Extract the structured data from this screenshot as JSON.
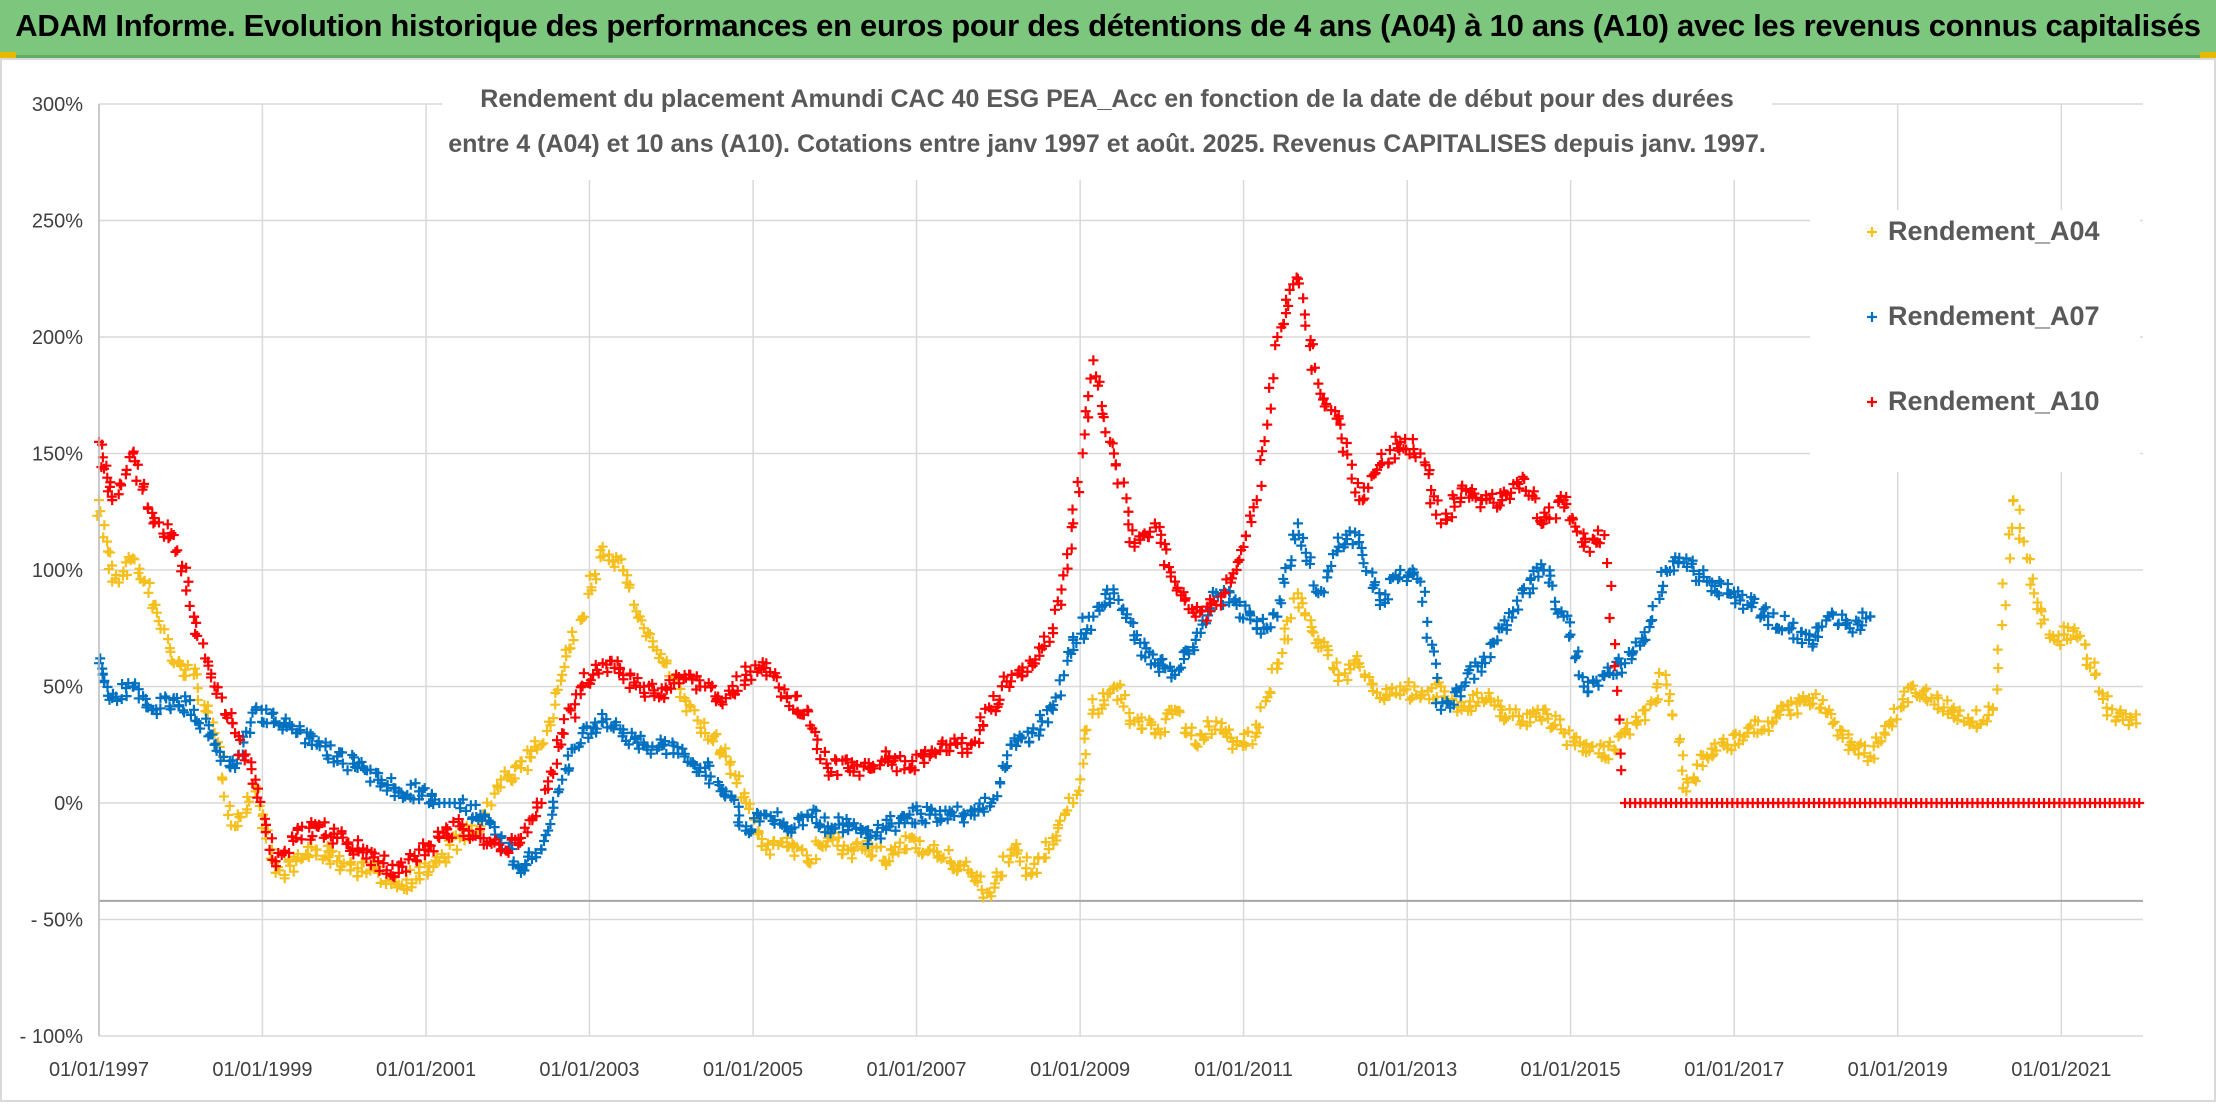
{
  "banner": {
    "title": "ADAM Informe. Evolution historique des performances en euros pour des détentions de 4 ans (A04) à 10 ans (A10) avec les revenus connus capitalisés",
    "background": "#7dc67d"
  },
  "chart_data": {
    "type": "scatter",
    "title_line1": "Rendement du placement Amundi CAC 40 ESG PEA_Acc en fonction de la date de début pour des durées",
    "title_line2": "entre 4 (A04) et 10 ans (A10). Cotations entre janv 1997 et août. 2025. Revenus CAPITALISES depuis janv. 1997.",
    "xlabel": "",
    "ylabel": "",
    "x_tick_labels": [
      "01/01/1997",
      "01/01/1999",
      "01/01/2001",
      "01/01/2003",
      "01/01/2005",
      "01/01/2007",
      "01/01/2009",
      "01/01/2011",
      "01/01/2013",
      "01/01/2015",
      "01/01/2017",
      "01/01/2019",
      "01/01/2021"
    ],
    "y_tick_labels": [
      "300%",
      "250%",
      "200%",
      "150%",
      "100%",
      "50%",
      "0%",
      "- 50%",
      "- 100%"
    ],
    "ylim": [
      -100,
      300
    ],
    "xlim": [
      "1997-01-01",
      "2022-01-01"
    ],
    "grid": true,
    "legend_position": "top-right",
    "marker": "+",
    "series": [
      {
        "name": "Rendement_A04",
        "color": "#f5c01e",
        "points": [
          [
            "1997-01-01",
            130
          ],
          [
            "1997-03-01",
            95
          ],
          [
            "1997-06-01",
            105
          ],
          [
            "1997-09-01",
            85
          ],
          [
            "1997-12-01",
            60
          ],
          [
            "1998-03-01",
            55
          ],
          [
            "1998-06-01",
            30
          ],
          [
            "1998-09-01",
            -10
          ],
          [
            "1998-12-01",
            5
          ],
          [
            "1999-03-01",
            -30
          ],
          [
            "1999-06-01",
            -25
          ],
          [
            "1999-09-01",
            -20
          ],
          [
            "1999-12-01",
            -25
          ],
          [
            "2000-03-01",
            -28
          ],
          [
            "2000-06-01",
            -30
          ],
          [
            "2000-09-01",
            -35
          ],
          [
            "2000-12-01",
            -30
          ],
          [
            "2001-03-01",
            -25
          ],
          [
            "2001-06-01",
            -15
          ],
          [
            "2001-09-01",
            -10
          ],
          [
            "2001-12-01",
            10
          ],
          [
            "2002-03-01",
            15
          ],
          [
            "2002-06-01",
            25
          ],
          [
            "2002-09-01",
            55
          ],
          [
            "2002-12-01",
            80
          ],
          [
            "2003-03-01",
            110
          ],
          [
            "2003-06-01",
            100
          ],
          [
            "2003-09-01",
            75
          ],
          [
            "2003-12-01",
            60
          ],
          [
            "2004-03-01",
            45
          ],
          [
            "2004-06-01",
            30
          ],
          [
            "2004-09-01",
            20
          ],
          [
            "2004-12-01",
            0
          ],
          [
            "2005-03-01",
            -20
          ],
          [
            "2005-06-01",
            -15
          ],
          [
            "2005-09-01",
            -25
          ],
          [
            "2005-12-01",
            -15
          ],
          [
            "2006-03-01",
            -20
          ],
          [
            "2006-06-01",
            -20
          ],
          [
            "2006-09-01",
            -25
          ],
          [
            "2006-12-01",
            -15
          ],
          [
            "2007-03-01",
            -20
          ],
          [
            "2007-06-01",
            -25
          ],
          [
            "2007-09-01",
            -30
          ],
          [
            "2007-12-01",
            -40
          ],
          [
            "2008-03-01",
            -20
          ],
          [
            "2008-06-01",
            -30
          ],
          [
            "2008-09-01",
            -15
          ],
          [
            "2008-12-01",
            0
          ],
          [
            "2009-03-01",
            40
          ],
          [
            "2009-06-01",
            50
          ],
          [
            "2009-09-01",
            35
          ],
          [
            "2009-12-01",
            30
          ],
          [
            "2010-03-01",
            40
          ],
          [
            "2010-06-01",
            25
          ],
          [
            "2010-09-01",
            35
          ],
          [
            "2010-12-01",
            25
          ],
          [
            "2011-03-01",
            30
          ],
          [
            "2011-06-01",
            60
          ],
          [
            "2011-09-01",
            90
          ],
          [
            "2011-12-01",
            70
          ],
          [
            "2012-03-01",
            55
          ],
          [
            "2012-06-01",
            60
          ],
          [
            "2012-09-01",
            45
          ],
          [
            "2012-12-01",
            50
          ],
          [
            "2013-03-01",
            45
          ],
          [
            "2013-06-01",
            50
          ],
          [
            "2013-09-01",
            40
          ],
          [
            "2013-12-01",
            45
          ],
          [
            "2014-03-01",
            40
          ],
          [
            "2014-06-01",
            35
          ],
          [
            "2014-09-01",
            40
          ],
          [
            "2014-12-01",
            30
          ],
          [
            "2015-03-01",
            25
          ],
          [
            "2015-06-01",
            20
          ],
          [
            "2015-09-01",
            30
          ],
          [
            "2015-12-01",
            40
          ],
          [
            "2016-03-01",
            55
          ],
          [
            "2016-06-01",
            5
          ],
          [
            "2016-09-01",
            20
          ],
          [
            "2016-12-01",
            25
          ],
          [
            "2017-03-01",
            30
          ],
          [
            "2017-06-01",
            35
          ],
          [
            "2017-09-01",
            40
          ],
          [
            "2017-12-01",
            45
          ],
          [
            "2018-03-01",
            40
          ],
          [
            "2018-06-01",
            25
          ],
          [
            "2018-09-01",
            20
          ],
          [
            "2018-12-01",
            35
          ],
          [
            "2019-03-01",
            50
          ],
          [
            "2019-06-01",
            45
          ],
          [
            "2019-09-01",
            40
          ],
          [
            "2019-12-01",
            35
          ],
          [
            "2020-03-01",
            40
          ],
          [
            "2020-06-01",
            130
          ],
          [
            "2020-09-01",
            90
          ],
          [
            "2020-12-01",
            70
          ],
          [
            "2021-03-01",
            75
          ],
          [
            "2021-06-01",
            55
          ],
          [
            "2021-09-01",
            35
          ],
          [
            "2021-12-01",
            38
          ]
        ]
      },
      {
        "name": "Rendement_A07",
        "color": "#0070c0",
        "points": [
          [
            "1997-01-01",
            60
          ],
          [
            "1997-03-01",
            45
          ],
          [
            "1997-06-01",
            50
          ],
          [
            "1997-09-01",
            40
          ],
          [
            "1997-12-01",
            45
          ],
          [
            "1998-03-01",
            40
          ],
          [
            "1998-06-01",
            25
          ],
          [
            "1998-09-01",
            15
          ],
          [
            "1998-12-01",
            40
          ],
          [
            "1999-03-01",
            35
          ],
          [
            "1999-06-01",
            30
          ],
          [
            "1999-09-01",
            25
          ],
          [
            "1999-12-01",
            20
          ],
          [
            "2000-03-01",
            15
          ],
          [
            "2000-06-01",
            10
          ],
          [
            "2000-09-01",
            5
          ],
          [
            "2000-12-01",
            5
          ],
          [
            "2001-03-01",
            0
          ],
          [
            "2001-06-01",
            0
          ],
          [
            "2001-09-01",
            -5
          ],
          [
            "2001-12-01",
            -15
          ],
          [
            "2002-03-01",
            -30
          ],
          [
            "2002-06-01",
            -20
          ],
          [
            "2002-09-01",
            10
          ],
          [
            "2002-12-01",
            30
          ],
          [
            "2003-03-01",
            35
          ],
          [
            "2003-06-01",
            30
          ],
          [
            "2003-09-01",
            25
          ],
          [
            "2003-12-01",
            25
          ],
          [
            "2004-03-01",
            20
          ],
          [
            "2004-06-01",
            15
          ],
          [
            "2004-09-01",
            5
          ],
          [
            "2004-12-01",
            -10
          ],
          [
            "2005-03-01",
            -5
          ],
          [
            "2005-06-01",
            -10
          ],
          [
            "2005-09-01",
            -5
          ],
          [
            "2005-12-01",
            -10
          ],
          [
            "2006-03-01",
            -10
          ],
          [
            "2006-06-01",
            -15
          ],
          [
            "2006-09-01",
            -10
          ],
          [
            "2006-12-01",
            -5
          ],
          [
            "2007-03-01",
            -5
          ],
          [
            "2007-06-01",
            -5
          ],
          [
            "2007-09-01",
            -5
          ],
          [
            "2007-12-01",
            0
          ],
          [
            "2008-03-01",
            25
          ],
          [
            "2008-06-01",
            30
          ],
          [
            "2008-09-01",
            40
          ],
          [
            "2008-12-01",
            70
          ],
          [
            "2009-03-01",
            80
          ],
          [
            "2009-06-01",
            90
          ],
          [
            "2009-09-01",
            70
          ],
          [
            "2009-12-01",
            60
          ],
          [
            "2010-03-01",
            55
          ],
          [
            "2010-06-01",
            70
          ],
          [
            "2010-09-01",
            90
          ],
          [
            "2010-12-01",
            85
          ],
          [
            "2011-03-01",
            75
          ],
          [
            "2011-06-01",
            80
          ],
          [
            "2011-09-01",
            120
          ],
          [
            "2011-12-01",
            90
          ],
          [
            "2012-03-01",
            110
          ],
          [
            "2012-06-01",
            115
          ],
          [
            "2012-09-01",
            85
          ],
          [
            "2012-12-01",
            100
          ],
          [
            "2013-03-01",
            95
          ],
          [
            "2013-06-01",
            40
          ],
          [
            "2013-09-01",
            50
          ],
          [
            "2013-12-01",
            60
          ],
          [
            "2014-03-01",
            75
          ],
          [
            "2014-06-01",
            90
          ],
          [
            "2014-09-01",
            100
          ],
          [
            "2014-12-01",
            80
          ],
          [
            "2015-03-01",
            50
          ],
          [
            "2015-06-01",
            55
          ],
          [
            "2015-09-01",
            60
          ],
          [
            "2015-12-01",
            70
          ],
          [
            "2016-03-01",
            100
          ],
          [
            "2016-06-01",
            105
          ],
          [
            "2016-09-01",
            95
          ],
          [
            "2016-12-01",
            90
          ],
          [
            "2017-03-01",
            85
          ],
          [
            "2017-06-01",
            80
          ],
          [
            "2017-09-01",
            75
          ],
          [
            "2017-12-01",
            70
          ],
          [
            "2018-03-01",
            80
          ],
          [
            "2018-06-01",
            75
          ],
          [
            "2018-09-01",
            80
          ]
        ]
      },
      {
        "name": "Rendement_A10",
        "color": "#ff0000",
        "points": [
          [
            "1997-01-01",
            155
          ],
          [
            "1997-03-01",
            130
          ],
          [
            "1997-06-01",
            150
          ],
          [
            "1997-09-01",
            120
          ],
          [
            "1997-12-01",
            115
          ],
          [
            "1998-03-01",
            80
          ],
          [
            "1998-06-01",
            50
          ],
          [
            "1998-09-01",
            30
          ],
          [
            "1998-12-01",
            10
          ],
          [
            "1999-03-01",
            -25
          ],
          [
            "1999-06-01",
            -15
          ],
          [
            "1999-09-01",
            -10
          ],
          [
            "1999-12-01",
            -15
          ],
          [
            "2000-03-01",
            -20
          ],
          [
            "2000-06-01",
            -25
          ],
          [
            "2000-09-01",
            -30
          ],
          [
            "2000-12-01",
            -20
          ],
          [
            "2001-03-01",
            -15
          ],
          [
            "2001-06-01",
            -10
          ],
          [
            "2001-09-01",
            -15
          ],
          [
            "2001-12-01",
            -20
          ],
          [
            "2002-03-01",
            -15
          ],
          [
            "2002-06-01",
            0
          ],
          [
            "2002-09-01",
            30
          ],
          [
            "2002-12-01",
            50
          ],
          [
            "2003-03-01",
            60
          ],
          [
            "2003-06-01",
            55
          ],
          [
            "2003-09-01",
            50
          ],
          [
            "2003-12-01",
            45
          ],
          [
            "2004-03-01",
            55
          ],
          [
            "2004-06-01",
            50
          ],
          [
            "2004-09-01",
            45
          ],
          [
            "2004-12-01",
            55
          ],
          [
            "2005-03-01",
            60
          ],
          [
            "2005-06-01",
            45
          ],
          [
            "2005-09-01",
            40
          ],
          [
            "2005-12-01",
            15
          ],
          [
            "2006-03-01",
            15
          ],
          [
            "2006-06-01",
            15
          ],
          [
            "2006-09-01",
            20
          ],
          [
            "2006-12-01",
            15
          ],
          [
            "2007-03-01",
            20
          ],
          [
            "2007-06-01",
            25
          ],
          [
            "2007-09-01",
            25
          ],
          [
            "2007-12-01",
            40
          ],
          [
            "2008-03-01",
            55
          ],
          [
            "2008-06-01",
            60
          ],
          [
            "2008-09-01",
            75
          ],
          [
            "2008-12-01",
            120
          ],
          [
            "2009-03-01",
            190
          ],
          [
            "2009-06-01",
            150
          ],
          [
            "2009-09-01",
            110
          ],
          [
            "2009-12-01",
            120
          ],
          [
            "2010-03-01",
            95
          ],
          [
            "2010-06-01",
            80
          ],
          [
            "2010-09-01",
            85
          ],
          [
            "2010-12-01",
            100
          ],
          [
            "2011-03-01",
            130
          ],
          [
            "2011-06-01",
            200
          ],
          [
            "2011-09-01",
            225
          ],
          [
            "2011-12-01",
            180
          ],
          [
            "2012-03-01",
            165
          ],
          [
            "2012-06-01",
            130
          ],
          [
            "2012-09-01",
            145
          ],
          [
            "2012-12-01",
            155
          ],
          [
            "2013-03-01",
            150
          ],
          [
            "2013-06-01",
            120
          ],
          [
            "2013-09-01",
            135
          ],
          [
            "2013-12-01",
            130
          ],
          [
            "2014-03-01",
            130
          ],
          [
            "2014-06-01",
            140
          ],
          [
            "2014-09-01",
            120
          ],
          [
            "2014-12-01",
            130
          ],
          [
            "2015-03-01",
            110
          ],
          [
            "2015-06-01",
            115
          ],
          [
            "2015-09-01",
            0
          ],
          [
            "2016-06-01",
            0
          ],
          [
            "2017-06-01",
            0
          ],
          [
            "2018-06-01",
            0
          ],
          [
            "2019-06-01",
            0
          ],
          [
            "2020-06-01",
            0
          ],
          [
            "2021-06-01",
            0
          ],
          [
            "2021-12-15",
            0
          ]
        ]
      }
    ]
  }
}
